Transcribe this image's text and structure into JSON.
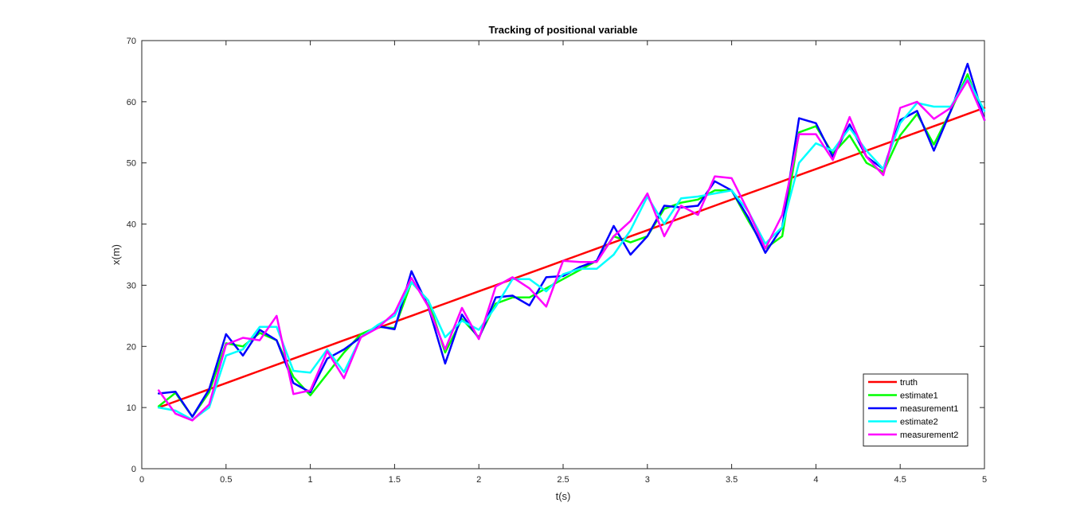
{
  "chart_data": {
    "type": "line",
    "title": "Tracking of positional variable",
    "xlabel": "t(s)",
    "ylabel": "x(m)",
    "xlim": [
      0,
      5
    ],
    "ylim": [
      0,
      70
    ],
    "xticks": [
      0,
      0.5,
      1,
      1.5,
      2,
      2.5,
      3,
      3.5,
      4,
      4.5,
      5
    ],
    "xtick_labels": [
      "0",
      "0.5",
      "1",
      "1.5",
      "2",
      "2.5",
      "3",
      "3.5",
      "4",
      "4.5",
      "5"
    ],
    "yticks": [
      0,
      10,
      20,
      30,
      40,
      50,
      60,
      70
    ],
    "ytick_labels": [
      "0",
      "10",
      "20",
      "30",
      "40",
      "50",
      "60",
      "70"
    ],
    "grid": false,
    "legend_position": "bottom-right",
    "x": [
      0.1,
      0.2,
      0.3,
      0.4,
      0.5,
      0.6,
      0.7,
      0.8,
      0.9,
      1.0,
      1.1,
      1.2,
      1.3,
      1.4,
      1.5,
      1.6,
      1.7,
      1.8,
      1.9,
      2.0,
      2.1,
      2.2,
      2.3,
      2.4,
      2.5,
      2.6,
      2.7,
      2.8,
      2.9,
      3.0,
      3.1,
      3.2,
      3.3,
      3.4,
      3.5,
      3.6,
      3.7,
      3.8,
      3.9,
      4.0,
      4.1,
      4.2,
      4.3,
      4.4,
      4.5,
      4.6,
      4.7,
      4.8,
      4.9,
      5.0
    ],
    "series": [
      {
        "name": "truth",
        "color": "#ff0000",
        "values": [
          10.0,
          11.0,
          12.0,
          13.0,
          14.0,
          15.0,
          16.0,
          17.0,
          18.0,
          19.0,
          20.0,
          21.0,
          22.0,
          23.0,
          24.0,
          25.0,
          26.0,
          27.0,
          28.0,
          29.0,
          30.0,
          31.0,
          32.0,
          33.0,
          34.0,
          35.0,
          36.0,
          37.0,
          38.0,
          39.0,
          40.0,
          41.0,
          42.0,
          43.0,
          44.0,
          45.0,
          46.0,
          47.0,
          48.0,
          49.0,
          50.0,
          51.0,
          52.0,
          53.0,
          54.0,
          55.0,
          56.0,
          57.0,
          58.0,
          59.0
        ]
      },
      {
        "name": "estimate1",
        "color": "#00ff00",
        "values": [
          10.2,
          12.4,
          8.5,
          12.5,
          20.5,
          20.0,
          22.2,
          21.0,
          15.0,
          12.0,
          15.5,
          19.0,
          22.0,
          23.2,
          23.0,
          30.5,
          27.5,
          19.0,
          24.5,
          21.5,
          27.0,
          28.0,
          28.0,
          29.5,
          31.0,
          32.5,
          34.0,
          38.0,
          37.0,
          38.0,
          42.5,
          43.5,
          44.0,
          45.5,
          45.5,
          40.5,
          36.0,
          38.0,
          55.0,
          56.0,
          51.5,
          54.5,
          50.0,
          48.5,
          54.5,
          58.0,
          53.0,
          58.5,
          64.5,
          57.0
        ]
      },
      {
        "name": "measurement1",
        "color": "#0000ff",
        "values": [
          12.3,
          12.6,
          8.5,
          13.0,
          22.0,
          18.5,
          22.7,
          21.0,
          14.0,
          12.5,
          18.0,
          19.5,
          21.5,
          23.3,
          22.8,
          32.3,
          26.5,
          17.2,
          25.2,
          21.3,
          28.0,
          28.3,
          26.7,
          31.3,
          31.5,
          33.0,
          34.0,
          39.7,
          35.0,
          38.0,
          43.0,
          42.7,
          43.0,
          47.0,
          45.5,
          41.0,
          35.3,
          39.5,
          57.3,
          56.5,
          51.0,
          56.3,
          51.0,
          49.0,
          57.0,
          58.5,
          52.0,
          58.5,
          66.2,
          57.0
        ]
      },
      {
        "name": "estimate2",
        "color": "#00ffff",
        "values": [
          10.0,
          9.5,
          8.0,
          10.0,
          18.5,
          19.5,
          23.2,
          23.2,
          16.0,
          15.7,
          19.5,
          15.8,
          21.5,
          23.5,
          25.0,
          30.5,
          27.5,
          21.5,
          24.2,
          22.7,
          26.5,
          31.0,
          31.0,
          29.0,
          31.8,
          32.7,
          32.7,
          35.0,
          39.0,
          44.5,
          40.0,
          44.2,
          44.5,
          45.0,
          45.5,
          42.0,
          36.8,
          39.5,
          50.0,
          53.2,
          52.0,
          55.7,
          52.0,
          49.0,
          56.5,
          59.8,
          59.2,
          59.2,
          63.8,
          58.5
        ]
      },
      {
        "name": "measurement2",
        "color": "#ff00ff",
        "values": [
          12.8,
          9.0,
          7.9,
          10.5,
          20.3,
          21.4,
          21.0,
          25.0,
          12.2,
          12.8,
          19.2,
          14.8,
          21.5,
          23.0,
          25.5,
          31.2,
          26.5,
          19.5,
          26.3,
          21.2,
          29.8,
          31.3,
          29.5,
          26.5,
          34.0,
          33.8,
          33.8,
          38.0,
          40.5,
          45.0,
          38.0,
          43.0,
          41.5,
          47.8,
          47.5,
          42.0,
          36.0,
          41.5,
          54.7,
          54.7,
          50.5,
          57.5,
          51.0,
          48.0,
          59.0,
          60.0,
          57.2,
          59.0,
          63.5,
          57.0
        ]
      }
    ]
  }
}
